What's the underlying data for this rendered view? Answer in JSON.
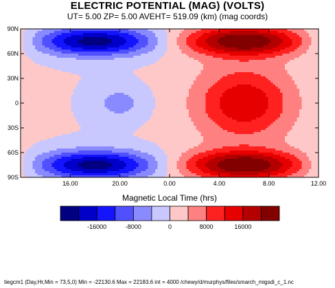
{
  "title": "ELECTRIC POTENTIAL (MAG) (VOLTS)",
  "subtitle": "UT=  5.00 ZP=  5.00 AVEHT= 519.09 (km) (mag coords)",
  "footer": "tiegcm1  (Day,Hr,Min = 73,5,0) Min = -22130.6  Max  = 22183.6  int = 4000 /chewy/d/murphys/files/smarch_migsdi_c_1.nc",
  "colors": {
    "palette": [
      "#000080",
      "#0000c8",
      "#1414ff",
      "#5050ff",
      "#8a8aff",
      "#c8c8ff",
      "#ffc8c8",
      "#ff8080",
      "#ff2020",
      "#e60000",
      "#b40000",
      "#820000"
    ]
  },
  "chart_data": {
    "type": "heatmap",
    "title": "ELECTRIC POTENTIAL (MAG) (VOLTS)",
    "xlabel": "Magnetic Local Time (hrs)",
    "ylabel": "",
    "x_ticks": [
      "16.00",
      "20.00",
      "0.00",
      "4.00",
      "8.00",
      "12.00"
    ],
    "y_ticks": [
      "90N",
      "60N",
      "30N",
      "0",
      "30S",
      "60S",
      "90S"
    ],
    "xlim": [
      "12.00",
      "12.00"
    ],
    "ylim": [
      -90,
      90
    ],
    "contour_interval": 4000,
    "min": -22130.6,
    "max": 22183.6,
    "levels": [
      -20000,
      -16000,
      -12000,
      -8000,
      -4000,
      0,
      4000,
      8000,
      12000,
      16000,
      20000
    ],
    "colorbar_labels": [
      "-16000",
      "-8000",
      "0",
      "8000",
      "16000"
    ],
    "features": [
      {
        "name": "negative-cell-north",
        "mlt": 18.0,
        "lat": 75,
        "peak": -22130.6
      },
      {
        "name": "negative-cell-south",
        "mlt": 18.0,
        "lat": -75,
        "peak": -22130.6
      },
      {
        "name": "positive-cell-north",
        "mlt": 6.0,
        "lat": 75,
        "peak": 22183.6
      },
      {
        "name": "positive-cell-south",
        "mlt": 6.0,
        "lat": -75,
        "peak": 22183.6
      },
      {
        "name": "equatorial-negative",
        "mlt": 20.0,
        "lat": 0,
        "peak": -6000
      },
      {
        "name": "equatorial-positive",
        "mlt": 6.0,
        "lat": 0,
        "peak": 13000
      }
    ]
  }
}
